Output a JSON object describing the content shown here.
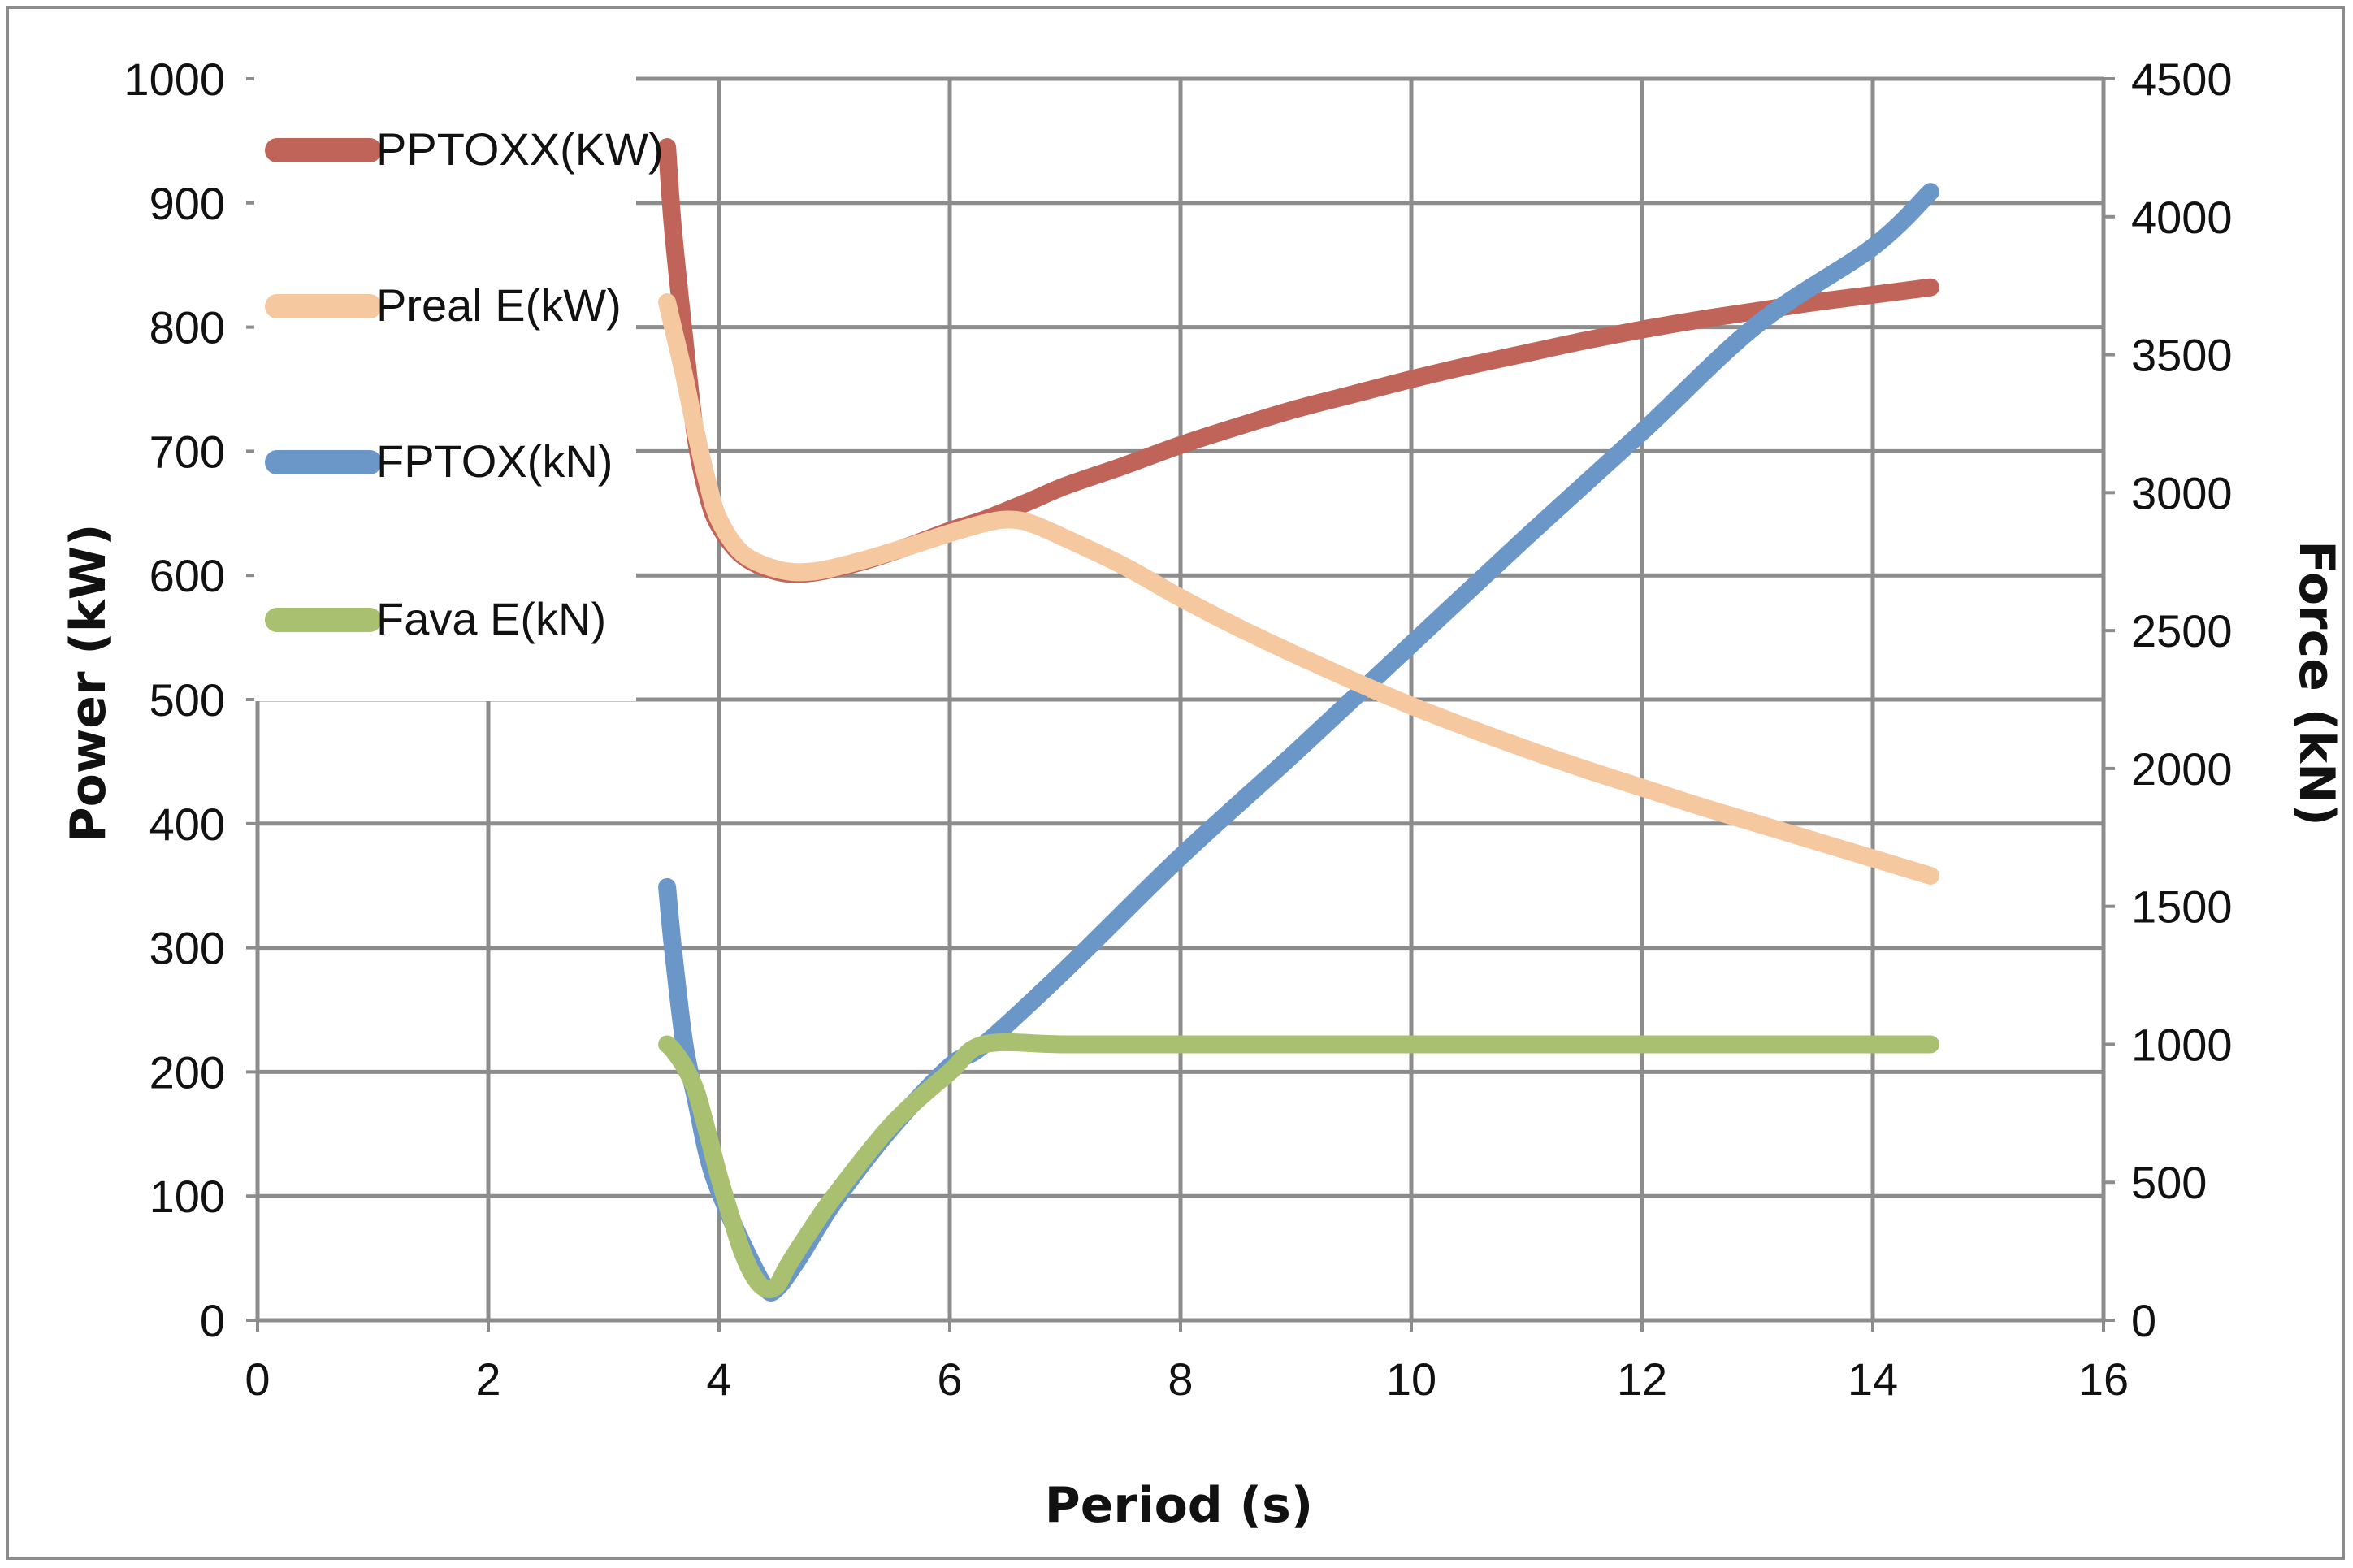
{
  "chart_data": {
    "type": "line",
    "xlabel": "Period (s)",
    "ylabel_left": "Power (kW)",
    "ylabel_right": "Force (kN)",
    "xlim": [
      0,
      16
    ],
    "ylim_left": [
      0,
      1000
    ],
    "ylim_right": [
      0,
      4500
    ],
    "x_ticks": [
      "0",
      "2",
      "4",
      "6",
      "8",
      "10",
      "12",
      "14",
      "16"
    ],
    "y_left_ticks": [
      "0",
      "100",
      "200",
      "300",
      "400",
      "500",
      "600",
      "700",
      "800",
      "900",
      "1000"
    ],
    "y_right_ticks": [
      "0",
      "500",
      "1000",
      "1500",
      "2000",
      "2500",
      "3000",
      "3500",
      "4000",
      "4500"
    ],
    "grid": true,
    "legend_position": "top-left",
    "series": [
      {
        "name": "PPTOXX(KW)",
        "axis": "left",
        "color": "#c0645a",
        "x": [
          3.55,
          3.6,
          3.7,
          3.8,
          3.9,
          4.0,
          4.2,
          4.5,
          4.8,
          5.2,
          5.6,
          6.0,
          6.3,
          6.7,
          7.0,
          7.5,
          8.0,
          8.5,
          9.0,
          9.5,
          10.0,
          10.5,
          11.0,
          11.5,
          12.0,
          12.5,
          13.0,
          13.5,
          14.0,
          14.5
        ],
        "y": [
          945,
          880,
          790,
          710,
          665,
          640,
          616,
          603,
          602,
          610,
          622,
          636,
          645,
          660,
          672,
          688,
          705,
          720,
          734,
          746,
          758,
          769,
          779,
          789,
          798,
          806,
          813,
          820,
          826,
          832
        ]
      },
      {
        "name": "Preal E(kW)",
        "axis": "left",
        "color": "#f6c8a0",
        "x": [
          3.55,
          3.6,
          3.7,
          3.8,
          3.9,
          4.0,
          4.2,
          4.5,
          4.8,
          5.2,
          5.6,
          6.0,
          6.3,
          6.5,
          6.7,
          7.0,
          7.5,
          8.0,
          8.5,
          9.0,
          9.5,
          10.0,
          10.5,
          11.0,
          11.5,
          12.0,
          12.5,
          13.0,
          13.5,
          14.0,
          14.5
        ],
        "y": [
          820,
          800,
          760,
          715,
          675,
          645,
          618,
          605,
          603,
          611,
          622,
          634,
          642,
          645,
          642,
          630,
          608,
          582,
          558,
          536,
          515,
          495,
          477,
          460,
          444,
          429,
          414,
          400,
          386,
          372,
          358
        ]
      },
      {
        "name": "FPTOX(kN)",
        "axis": "right",
        "color": "#6a96c8",
        "x": [
          3.55,
          3.6,
          3.7,
          3.8,
          3.9,
          4.0,
          4.2,
          4.4,
          4.5,
          4.7,
          5.0,
          5.5,
          6.0,
          6.3,
          7.0,
          8.0,
          9.0,
          10.0,
          11.0,
          12.0,
          13.0,
          14.0,
          14.5
        ],
        "y": [
          1570,
          1350,
          1000,
          800,
          600,
          470,
          280,
          120,
          115,
          230,
          430,
          700,
          920,
          1000,
          1270,
          1680,
          2060,
          2450,
          2840,
          3220,
          3610,
          3890,
          4090
        ]
      },
      {
        "name": "Fava E(kN)",
        "axis": "right",
        "color": "#a8c070",
        "x": [
          3.55,
          3.6,
          3.7,
          3.8,
          3.9,
          4.0,
          4.1,
          4.2,
          4.3,
          4.4,
          4.5,
          4.6,
          4.8,
          5.0,
          5.5,
          6.0,
          6.3,
          7.0,
          8.0,
          9.0,
          10.0,
          11.0,
          12.0,
          13.0,
          14.0,
          14.5
        ],
        "y": [
          1000,
          980,
          920,
          830,
          680,
          520,
          380,
          250,
          160,
          115,
          125,
          200,
          330,
          450,
          710,
          900,
          1000,
          1000,
          1000,
          1000,
          1000,
          1000,
          1000,
          1000,
          1000,
          1000
        ]
      }
    ]
  }
}
